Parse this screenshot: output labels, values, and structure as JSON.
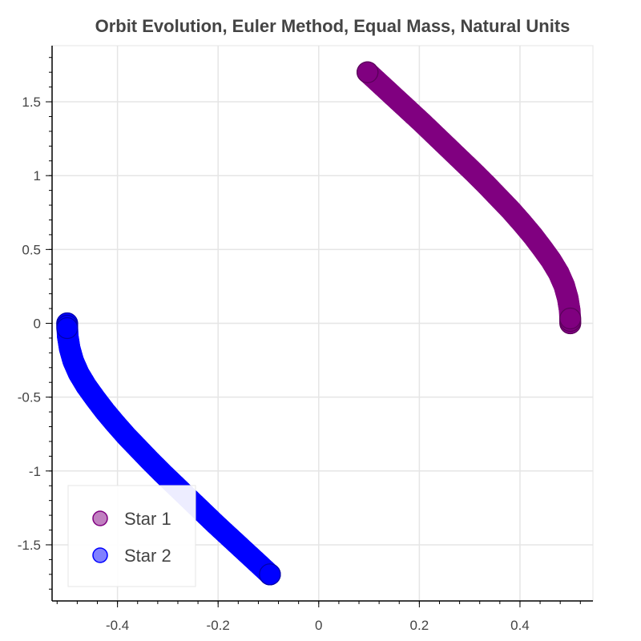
{
  "chart_data": {
    "type": "scatter",
    "title": "Orbit Evolution, Euler Method, Equal Mass, Natural Units",
    "xlabel": "",
    "ylabel": "",
    "xlim": [
      -0.53,
      0.545
    ],
    "ylim": [
      -1.88,
      1.88
    ],
    "xticks": [
      -0.4,
      -0.2,
      0,
      0.2,
      0.4
    ],
    "xtick_labels": [
      "-0.4",
      "-0.2",
      "0",
      "0.2",
      "0.4"
    ],
    "yticks": [
      -1.5,
      -1,
      -0.5,
      0,
      0.5,
      1,
      1.5
    ],
    "ytick_labels": [
      "-1.5",
      "-1",
      "-0.5",
      "0",
      "0.5",
      "1",
      "1.5"
    ],
    "grid": true,
    "legend_position": "bottom-left",
    "series": [
      {
        "name": "Star 1",
        "fill_color": "#800080",
        "line_color": "#800080",
        "x": [
          0.5,
          0.499,
          0.495,
          0.488,
          0.477,
          0.462,
          0.444,
          0.425,
          0.404,
          0.382,
          0.358,
          0.334,
          0.309,
          0.283,
          0.257,
          0.231,
          0.205,
          0.178,
          0.151,
          0.124,
          0.097
        ],
        "y": [
          0.0,
          0.085,
          0.17,
          0.255,
          0.34,
          0.425,
          0.51,
          0.595,
          0.68,
          0.765,
          0.85,
          0.935,
          1.02,
          1.105,
          1.19,
          1.275,
          1.36,
          1.445,
          1.53,
          1.615,
          1.7
        ]
      },
      {
        "name": "Star 2",
        "fill_color": "#0000ff",
        "line_color": "#0000ff",
        "x": [
          -0.5,
          -0.499,
          -0.495,
          -0.488,
          -0.477,
          -0.462,
          -0.444,
          -0.425,
          -0.404,
          -0.382,
          -0.358,
          -0.334,
          -0.309,
          -0.283,
          -0.257,
          -0.231,
          -0.205,
          -0.178,
          -0.151,
          -0.124,
          -0.097
        ],
        "y": [
          0.0,
          -0.085,
          -0.17,
          -0.255,
          -0.34,
          -0.425,
          -0.51,
          -0.595,
          -0.68,
          -0.765,
          -0.85,
          -0.935,
          -1.02,
          -1.105,
          -1.19,
          -1.275,
          -1.36,
          -1.445,
          -1.53,
          -1.615,
          -1.7
        ]
      }
    ],
    "legend": [
      {
        "label": "Star 1",
        "fill_color": "#c080c0",
        "line_color": "#800080"
      },
      {
        "label": "Star 2",
        "fill_color": "#8080ff",
        "line_color": "#0000ff"
      }
    ]
  }
}
